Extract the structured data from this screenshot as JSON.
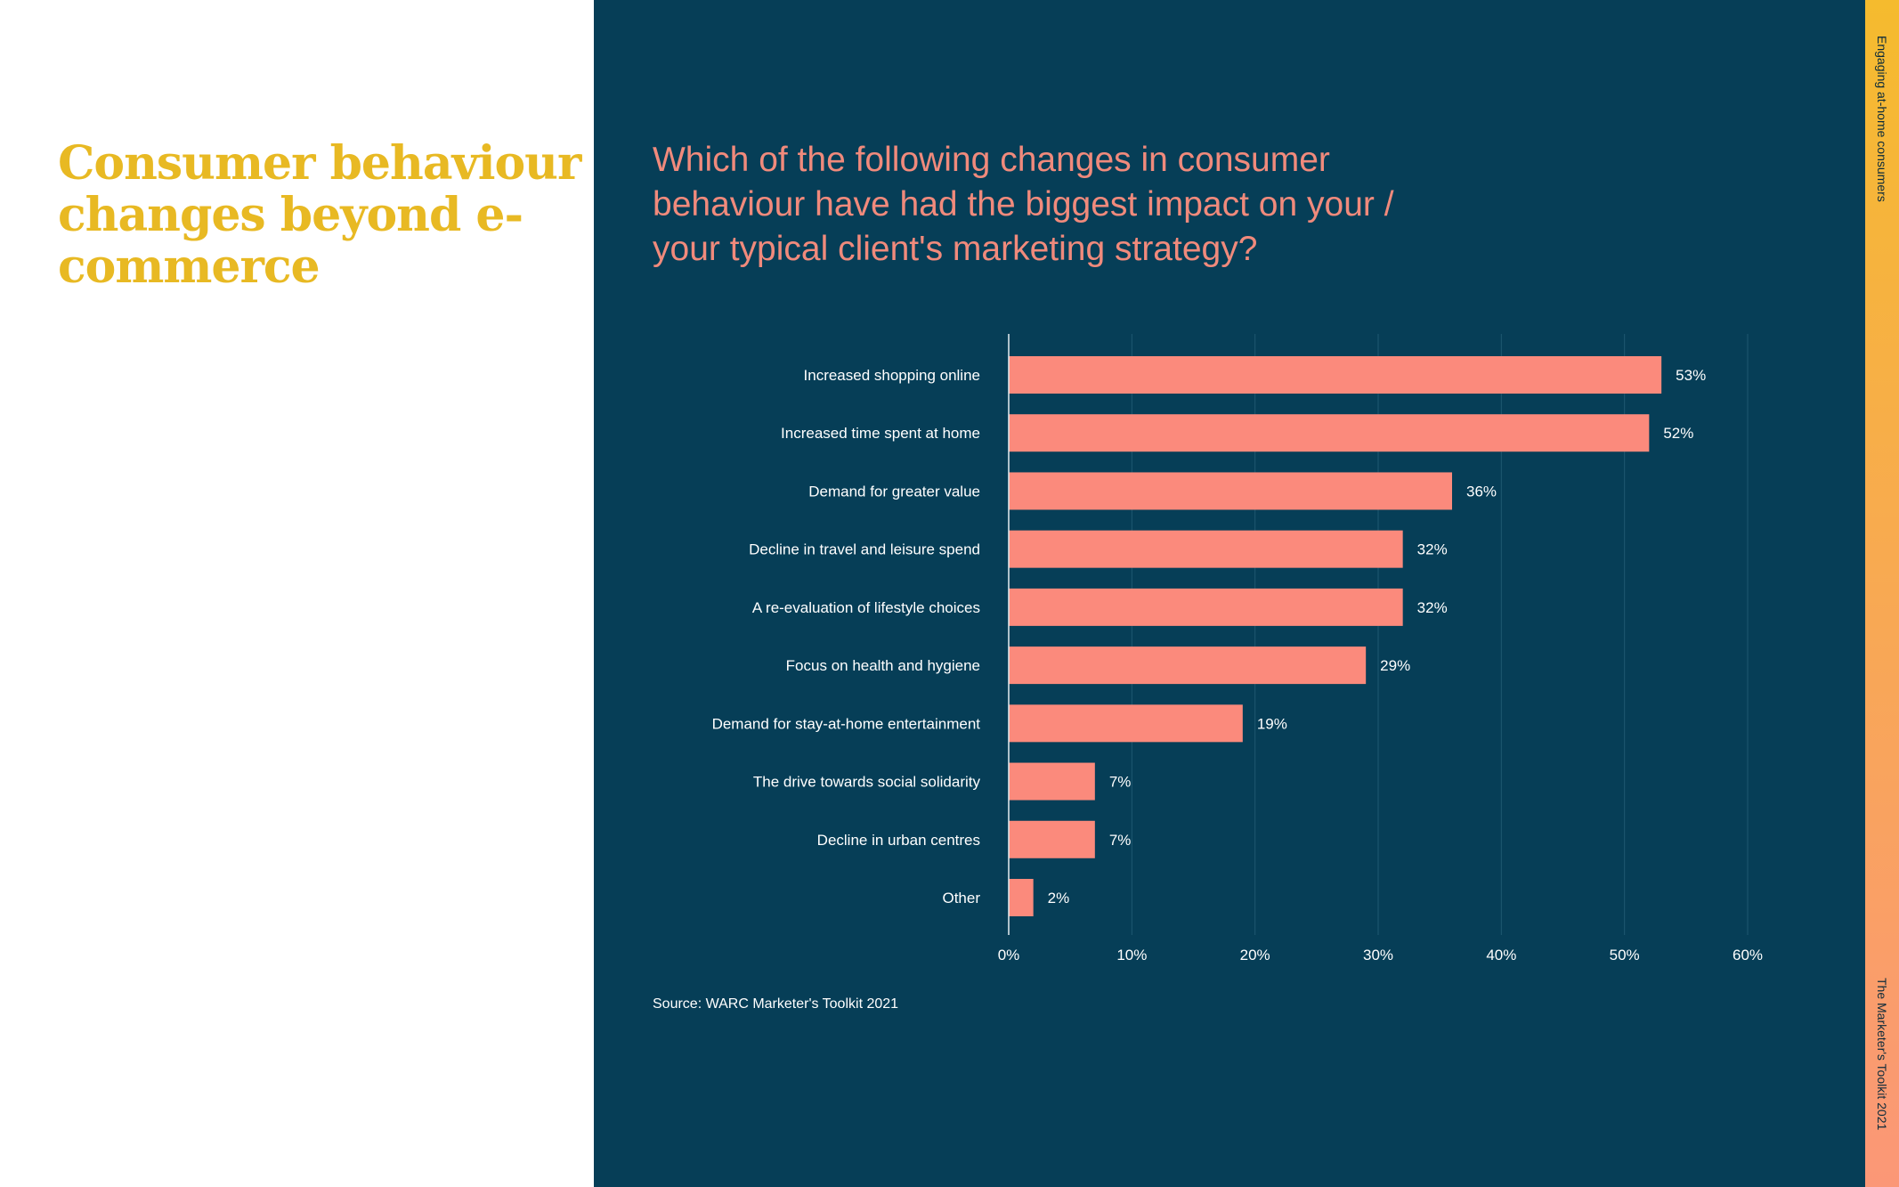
{
  "page": {
    "title": "Consumer behaviour changes beyond e-commerce",
    "source": "Source: WARC Marketer's Toolkit 2021",
    "side_top": "Engaging at-home consumers",
    "side_bottom": "The Marketer's Toolkit 2021"
  },
  "colors": {
    "title": "#e8b923",
    "panel": "#063e57",
    "question": "#f08a7c",
    "bar": "#fb8a7c",
    "grid": "#1f5870",
    "axis": "#e6eef2",
    "strip_top": "#f5bb2e",
    "strip_bottom": "#fb9777"
  },
  "chart_data": {
    "type": "bar",
    "orientation": "horizontal",
    "title": "Which of the following changes in consumer behaviour have had the biggest impact on your / your typical client's marketing strategy?",
    "categories": [
      "Increased shopping online",
      "Increased time spent at home",
      "Demand for greater value",
      "Decline in travel and leisure spend",
      "A re-evaluation of lifestyle choices",
      "Focus on health and hygiene",
      "Demand for stay-at-home entertainment",
      "The drive towards social solidarity",
      "Decline in urban centres",
      "Other"
    ],
    "values": [
      53,
      52,
      36,
      32,
      32,
      29,
      19,
      7,
      7,
      2
    ],
    "value_labels": [
      "53%",
      "52%",
      "36%",
      "32%",
      "32%",
      "29%",
      "19%",
      "7%",
      "7%",
      "2%"
    ],
    "xlim": [
      0,
      60
    ],
    "ticks": [
      0,
      10,
      20,
      30,
      40,
      50,
      60
    ],
    "tick_labels": [
      "0%",
      "10%",
      "20%",
      "30%",
      "40%",
      "50%",
      "60%"
    ],
    "grid": true,
    "xlabel": "",
    "ylabel": ""
  }
}
